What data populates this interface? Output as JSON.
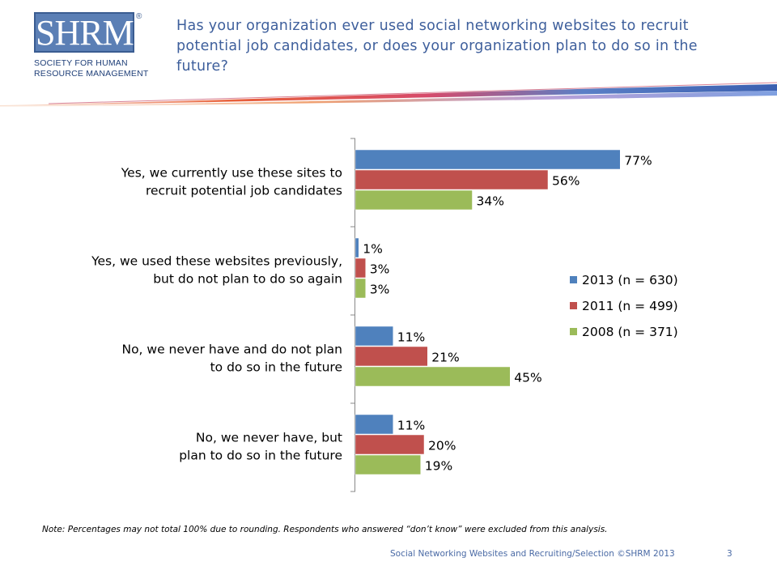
{
  "logo": {
    "wordmark": "SHRM",
    "registered": "®",
    "line1": "SOCIETY FOR HUMAN",
    "line2": "RESOURCE MANAGEMENT"
  },
  "title": "Has your organization ever used social networking websites to recruit potential job candidates, or does your organization plan to do so in the future?",
  "chart_data": {
    "type": "bar",
    "orientation": "horizontal",
    "categories": [
      [
        "Yes, we currently use these sites to",
        "recruit potential job candidates"
      ],
      [
        "Yes, we used these websites previously,",
        "but do not plan to do so again"
      ],
      [
        "No, we never have and do not plan",
        "to do so in the future"
      ],
      [
        "No, we never have, but",
        "plan to do so in the future"
      ]
    ],
    "series": [
      {
        "name": "2013 (n = 630)",
        "color": "#4f81bd",
        "values": [
          77,
          1,
          11,
          11
        ],
        "labels": [
          "77%",
          "1%",
          "11%",
          "11%"
        ]
      },
      {
        "name": "2011 (n = 499)",
        "color": "#c0504d",
        "values": [
          56,
          3,
          21,
          20
        ],
        "labels": [
          "56%",
          "3%",
          "21%",
          "20%"
        ]
      },
      {
        "name": "2008 (n = 371)",
        "color": "#9bbb59",
        "values": [
          34,
          3,
          45,
          19
        ],
        "labels": [
          "34%",
          "3%",
          "45%",
          "19%"
        ]
      }
    ],
    "xlim": [
      0,
      100
    ],
    "grid": false,
    "legend_position": "right"
  },
  "note": "Note:  Percentages may not total 100% due to rounding. Respondents who answered “don’t know” were excluded from this analysis.",
  "footer": {
    "text": "Social Networking Websites and Recruiting/Selection ©SHRM 2013",
    "page": "3"
  }
}
